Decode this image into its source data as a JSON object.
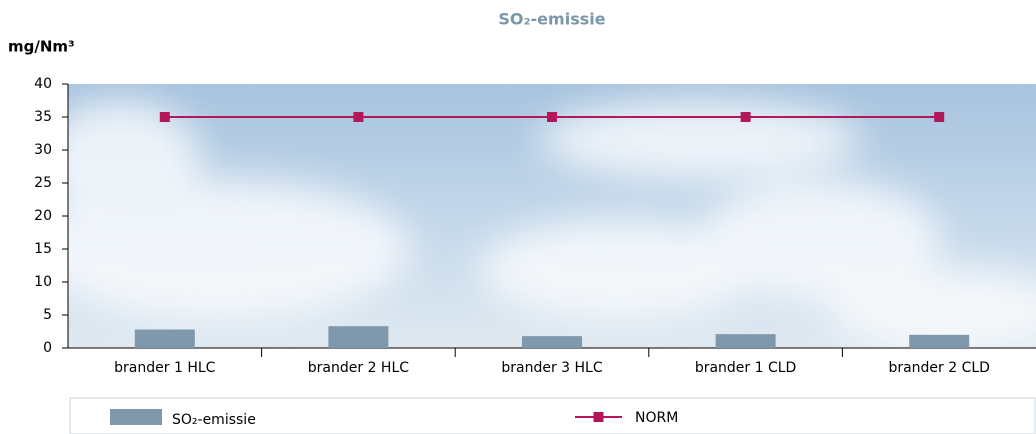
{
  "chart_data": {
    "type": "bar",
    "title": "SO₂-emissie",
    "y_label": "mg/Nm³",
    "categories": [
      "brander 1 HLC",
      "brander 2 HLC",
      "brander 3 HLC",
      "brander 1 CLD",
      "brander 2 CLD"
    ],
    "series": [
      {
        "name": "SO₂-emissie",
        "type": "bar",
        "color": "#7f98ab",
        "values": [
          2.8,
          3.3,
          1.8,
          2.1,
          2.0
        ]
      },
      {
        "name": "NORM",
        "type": "line",
        "color": "#b3175a",
        "values": [
          35,
          35,
          35,
          35,
          35
        ]
      }
    ],
    "ylim": [
      0,
      40
    ],
    "yticks": [
      0,
      5,
      10,
      15,
      20,
      25,
      30,
      35,
      40
    ],
    "grid": false
  }
}
